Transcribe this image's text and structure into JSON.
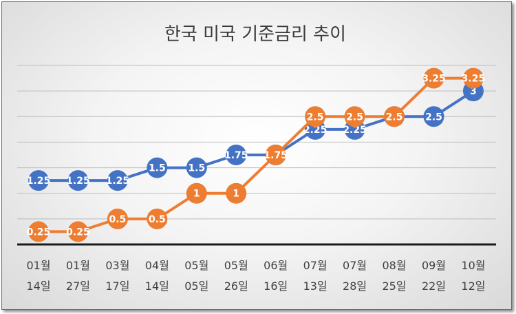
{
  "chart_data": {
    "type": "line",
    "title": "한국 미국 기준금리 추이",
    "xlabel": "",
    "ylabel": "",
    "categories": [
      [
        "01월",
        "14일"
      ],
      [
        "01월",
        "27일"
      ],
      [
        "03월",
        "17일"
      ],
      [
        "04월",
        "14일"
      ],
      [
        "05월",
        "05일"
      ],
      [
        "05월",
        "26일"
      ],
      [
        "06월",
        "16일"
      ],
      [
        "07월",
        "13일"
      ],
      [
        "07월",
        "28일"
      ],
      [
        "08월",
        "25일"
      ],
      [
        "09월",
        "22일"
      ],
      [
        "10월",
        "12일"
      ]
    ],
    "ylim": [
      0,
      3.5
    ],
    "grid": true,
    "legend": "none",
    "series": [
      {
        "color": "#4472C4",
        "values": [
          1.25,
          1.25,
          1.25,
          1.5,
          1.5,
          1.75,
          1.75,
          2.25,
          2.25,
          2.5,
          2.5,
          3
        ],
        "labels": [
          "1.25",
          "1.25",
          "1.25",
          "1.5",
          "1.5",
          "1.75",
          "1.75",
          "2.25",
          "2.25",
          "2.5",
          "2.5",
          "3"
        ]
      },
      {
        "color": "#ED7D31",
        "values": [
          0.25,
          0.25,
          0.5,
          0.5,
          1,
          1,
          1.75,
          2.5,
          2.5,
          2.5,
          3.25,
          3.25
        ],
        "labels": [
          "0.25",
          "0.25",
          "0.5",
          "0.5",
          "1",
          "1",
          "1.75",
          "2.5",
          "2.5",
          "2.5",
          "3.25",
          "3.25"
        ]
      }
    ]
  }
}
